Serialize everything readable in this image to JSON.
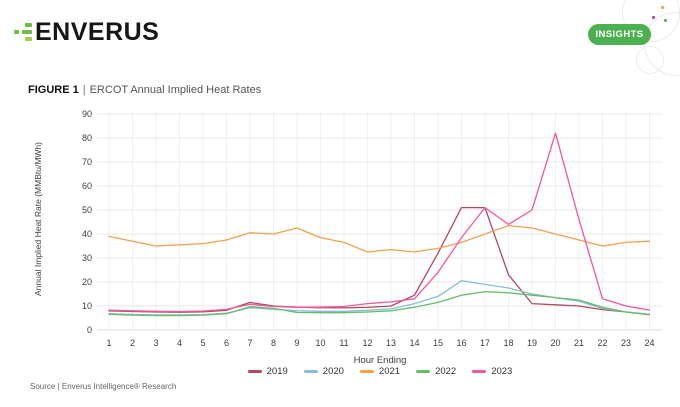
{
  "header": {
    "logo_text": "ENVERUS",
    "insights_label": "INSIGHTS"
  },
  "figure": {
    "label": "FIGURE 1",
    "separator": "|",
    "title": "ERCOT Annual Implied Heat Rates"
  },
  "chart_data": {
    "type": "line",
    "title": "ERCOT Annual Implied Heat Rates",
    "xlabel": "Hour Ending",
    "ylabel": "Annual Implied Heat Rate (MMBtu/MWh)",
    "x": [
      1,
      2,
      3,
      4,
      5,
      6,
      7,
      8,
      9,
      10,
      11,
      12,
      13,
      14,
      15,
      16,
      17,
      18,
      19,
      20,
      21,
      22,
      23,
      24
    ],
    "ylim": [
      0,
      90
    ],
    "yticks": [
      0,
      10,
      20,
      30,
      40,
      50,
      60,
      70,
      80,
      90
    ],
    "grid": true,
    "legend_position": "bottom",
    "series": [
      {
        "name": "2019",
        "color": "#b04a5c",
        "values": [
          8,
          7.7,
          7.5,
          7.4,
          7.6,
          8.2,
          11.5,
          10,
          9.5,
          9.3,
          9.2,
          9.4,
          10,
          14.5,
          32,
          51,
          51,
          23,
          11,
          10.5,
          10,
          8.5,
          7.5,
          6.5
        ]
      },
      {
        "name": "2020",
        "color": "#86bdd8",
        "values": [
          6.8,
          6.5,
          6.3,
          6.3,
          6.4,
          7,
          9.3,
          8.6,
          8,
          7.8,
          7.8,
          8.2,
          8.8,
          11,
          14,
          20.5,
          19,
          17.5,
          15,
          13.5,
          12,
          9,
          7.5,
          6.5
        ]
      },
      {
        "name": "2021",
        "color": "#f5a04c",
        "values": [
          39,
          37,
          35,
          35.5,
          36,
          37.5,
          40.5,
          40,
          42.5,
          38.5,
          36.5,
          32.5,
          33.5,
          32.5,
          34,
          36.5,
          40,
          43.5,
          42.5,
          40,
          37.5,
          35,
          36.5,
          37
        ]
      },
      {
        "name": "2022",
        "color": "#67bd68",
        "values": [
          6.5,
          6.2,
          6,
          6,
          6.2,
          6.8,
          9.7,
          9,
          7.3,
          7.2,
          7.2,
          7.5,
          8,
          9.5,
          11.5,
          14.5,
          16,
          15.5,
          14.5,
          13.5,
          12.5,
          9.5,
          7.5,
          6.3
        ]
      },
      {
        "name": "2023",
        "color": "#ef57a1",
        "values": [
          8.3,
          8,
          7.8,
          7.7,
          7.9,
          8.6,
          10.7,
          9.8,
          9.5,
          9.5,
          9.8,
          11,
          11.7,
          13,
          24,
          38.5,
          51,
          44,
          50,
          82,
          46,
          13,
          10,
          8.3
        ]
      }
    ]
  },
  "source": "Source | Enverus Intelligence® Research"
}
